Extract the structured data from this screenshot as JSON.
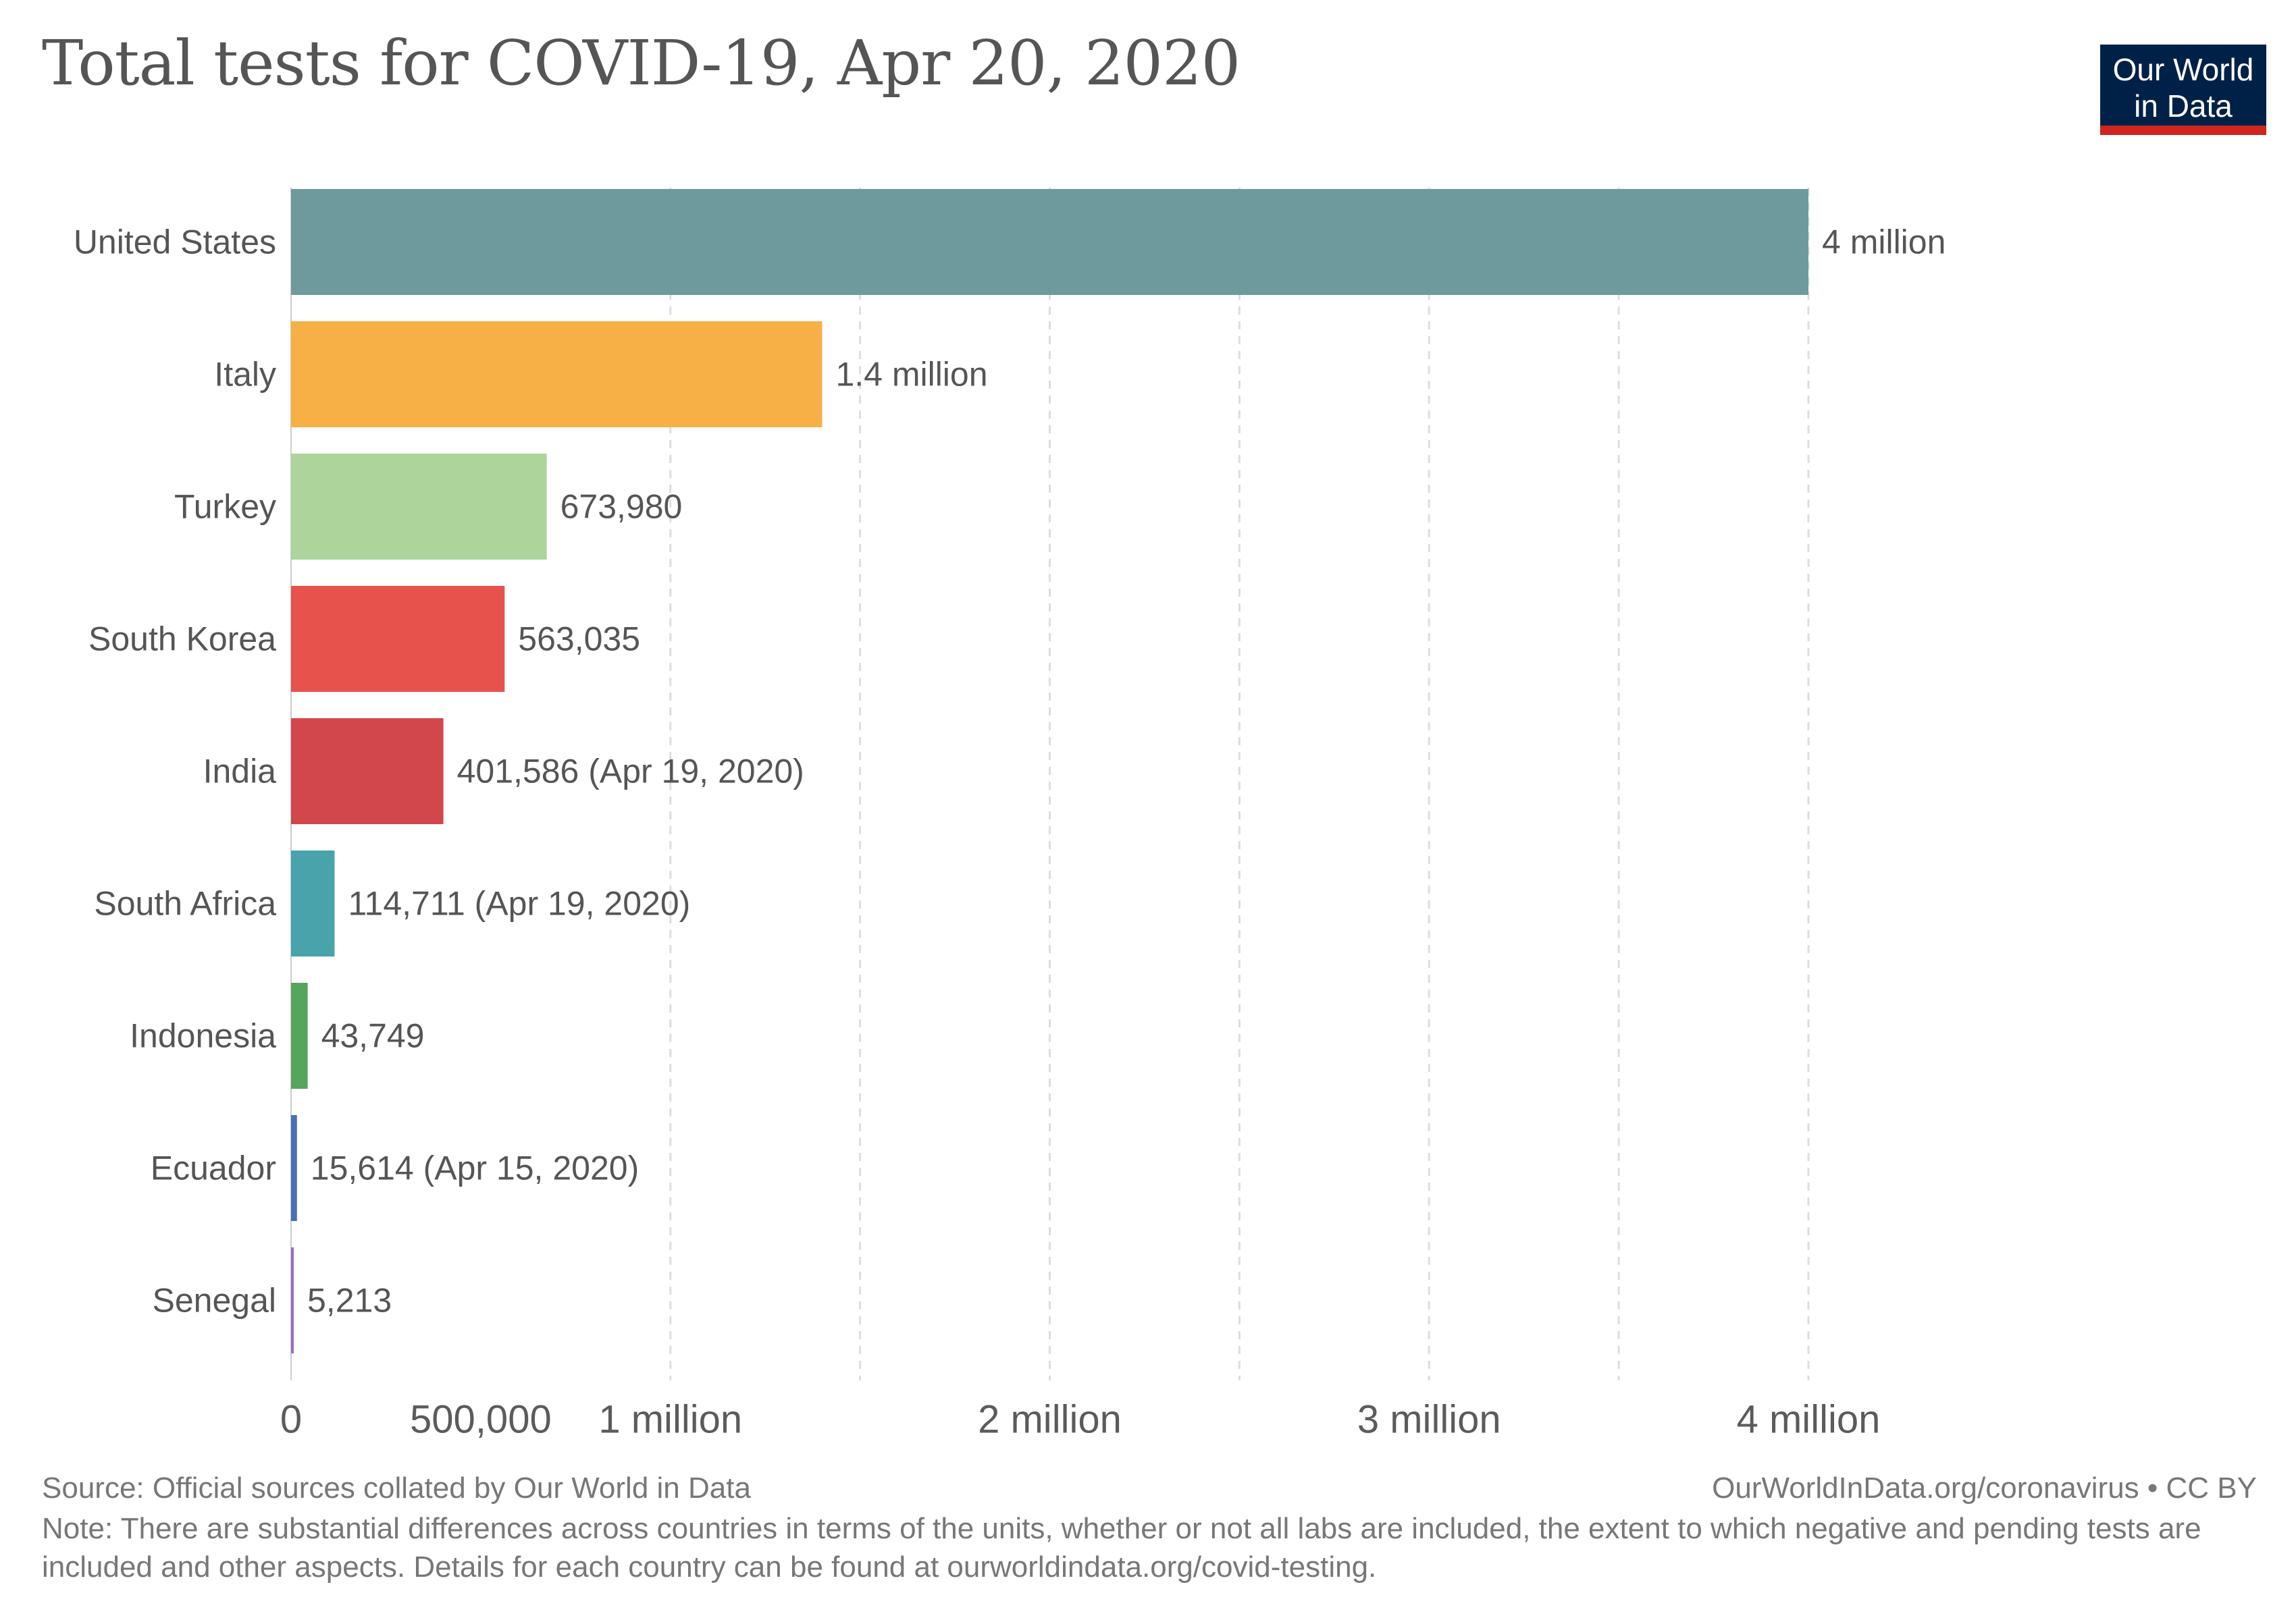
{
  "title": "Total tests for COVID-19, Apr 20, 2020",
  "logo": {
    "line1": "Our World",
    "line2": "in Data",
    "bg_color": "#002147",
    "accent_color": "#ce261e"
  },
  "chart_data": {
    "type": "bar",
    "orientation": "horizontal",
    "title": "Total tests for COVID-19, Apr 20, 2020",
    "xlabel": "",
    "ylabel": "",
    "xlim": [
      0,
      4000000
    ],
    "grid": "vertical dashed",
    "x_ticks": [
      {
        "value": 0,
        "label": "0"
      },
      {
        "value": 500000,
        "label": "500,000"
      },
      {
        "value": 1000000,
        "label": "1 million"
      },
      {
        "value": 2000000,
        "label": "2 million"
      },
      {
        "value": 3000000,
        "label": "3 million"
      },
      {
        "value": 4000000,
        "label": "4 million"
      }
    ],
    "gridlines": [
      1000000,
      1500000,
      2000000,
      2500000,
      3000000,
      3500000,
      4000000
    ],
    "categories": [
      "United States",
      "Italy",
      "Turkey",
      "South Korea",
      "India",
      "South Africa",
      "Indonesia",
      "Ecuador",
      "Senegal"
    ],
    "values": [
      4000000,
      1400000,
      673980,
      563035,
      401586,
      114711,
      43749,
      15614,
      5213
    ],
    "value_labels": [
      "4 million",
      "1.4 million",
      "673,980",
      "563,035",
      "401,586 (Apr 19, 2020)",
      "114,711 (Apr 19, 2020)",
      "43,749",
      "15,614 (Apr 15, 2020)",
      "5,213"
    ],
    "colors": [
      "#6e9a9e",
      "#f6b045",
      "#acd49b",
      "#e8524c",
      "#d1474c",
      "#48a3ab",
      "#56a55c",
      "#4b6eb8",
      "#9c6bc0"
    ]
  },
  "footer": {
    "source": "Source: Official sources collated by Our World in Data",
    "credit": "OurWorldInData.org/coronavirus • CC BY",
    "note": "Note: There are substantial differences across countries in terms of the units, whether or not all labs are included, the extent to which negative and pending tests are included and other aspects. Details for each country can be found at ourworldindata.org/covid-testing."
  }
}
